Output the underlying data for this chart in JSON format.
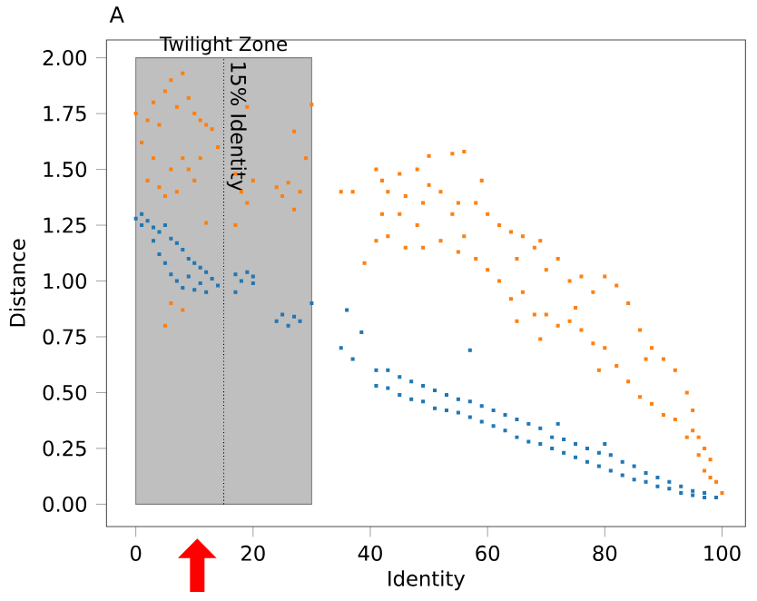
{
  "chart_data": {
    "type": "scatter",
    "title": "A",
    "xlabel": "Identity",
    "ylabel": "Distance",
    "xlim": [
      -5,
      104
    ],
    "ylim": [
      -0.1,
      2.08
    ],
    "xticks": [
      0,
      20,
      40,
      60,
      80,
      100
    ],
    "yticks": [
      {
        "value": 0,
        "label": "0.00"
      },
      {
        "value": 0.25,
        "label": "0.25"
      },
      {
        "value": 0.5,
        "label": "0.50"
      },
      {
        "value": 0.75,
        "label": "0.75"
      },
      {
        "value": 1.0,
        "label": "1.00"
      },
      {
        "value": 1.25,
        "label": "1.25"
      },
      {
        "value": 1.5,
        "label": "1.50"
      },
      {
        "value": 1.75,
        "label": "1.75"
      },
      {
        "value": 2.0,
        "label": "2.00"
      }
    ],
    "marker": "square",
    "bands": [
      {
        "axis": "x",
        "from": 0,
        "to": 30,
        "label": "Twilight Zone",
        "color": "#bfbfbf"
      }
    ],
    "ref_lines": [
      {
        "axis": "x",
        "value": 15,
        "label": "15% Identity",
        "color": "#000000",
        "line_style": "dotted"
      }
    ],
    "series": [
      {
        "color": "#1f77b4",
        "x": [
          0,
          1,
          1,
          2,
          3,
          3,
          4,
          4,
          5,
          5,
          6,
          6,
          7,
          7,
          8,
          8,
          9,
          9,
          10,
          10,
          11,
          11,
          12,
          12,
          13,
          14,
          17,
          17,
          18,
          19,
          20,
          20,
          24,
          25,
          26,
          27,
          28,
          30,
          35,
          36,
          37,
          38.5,
          41,
          41,
          43,
          43,
          45,
          45,
          47,
          47,
          49,
          49,
          51,
          51,
          53,
          53,
          55,
          55,
          57,
          57,
          57,
          59,
          59,
          61,
          61,
          63,
          63,
          65,
          65,
          67,
          67,
          69,
          69,
          71,
          71,
          72,
          73,
          73,
          75,
          75,
          77,
          77,
          79,
          79,
          80,
          81,
          81,
          83,
          83,
          85,
          85,
          87,
          87,
          89,
          89,
          91,
          91,
          93,
          93,
          95,
          95,
          97,
          97,
          99
        ],
        "values": [
          1.28,
          1.3,
          1.25,
          1.27,
          1.24,
          1.18,
          1.22,
          1.12,
          1.25,
          1.08,
          1.19,
          1.03,
          1.17,
          1.0,
          1.14,
          0.97,
          1.1,
          1.02,
          1.08,
          0.96,
          1.06,
          0.99,
          1.04,
          0.95,
          1.01,
          0.98,
          1.03,
          0.95,
          1.0,
          1.04,
          0.99,
          1.02,
          0.82,
          0.85,
          0.8,
          0.84,
          0.82,
          0.9,
          0.7,
          0.87,
          0.65,
          0.77,
          0.6,
          0.53,
          0.6,
          0.52,
          0.57,
          0.49,
          0.55,
          0.47,
          0.53,
          0.46,
          0.51,
          0.43,
          0.49,
          0.42,
          0.47,
          0.41,
          0.46,
          0.39,
          0.69,
          0.44,
          0.37,
          0.42,
          0.35,
          0.4,
          0.33,
          0.38,
          0.3,
          0.36,
          0.28,
          0.34,
          0.27,
          0.3,
          0.25,
          0.36,
          0.29,
          0.23,
          0.27,
          0.21,
          0.25,
          0.19,
          0.23,
          0.17,
          0.27,
          0.22,
          0.15,
          0.19,
          0.13,
          0.17,
          0.11,
          0.14,
          0.1,
          0.12,
          0.08,
          0.1,
          0.07,
          0.08,
          0.05,
          0.06,
          0.04,
          0.05,
          0.03,
          0.03
        ]
      },
      {
        "color": "#ff7f0e",
        "x": [
          0,
          1,
          2,
          2,
          3,
          3,
          4,
          4,
          5,
          5,
          5,
          6,
          6,
          6,
          7,
          7,
          8,
          8,
          8,
          9,
          9,
          10,
          10,
          11,
          11,
          12,
          12,
          13,
          14,
          17,
          17,
          18,
          19,
          19,
          20,
          24,
          25,
          26,
          27,
          27,
          28,
          29,
          30,
          35,
          37,
          39,
          41,
          41,
          42,
          42,
          43,
          43,
          45,
          45,
          46,
          46,
          48,
          48,
          49,
          49,
          50,
          50,
          52,
          52,
          54,
          54,
          55,
          55,
          56,
          56,
          58,
          58,
          59,
          60,
          60,
          62,
          62,
          64,
          64,
          65,
          65,
          66,
          66,
          68,
          68,
          69,
          69,
          70,
          70,
          72,
          72,
          74,
          74,
          75,
          76,
          76,
          78,
          78,
          79,
          80,
          80,
          82,
          82,
          84,
          84,
          86,
          86,
          87,
          88,
          88,
          90,
          90,
          92,
          92,
          94,
          94,
          95,
          95,
          96,
          96,
          97,
          97,
          98,
          98,
          99,
          100
        ],
        "values": [
          1.75,
          1.62,
          1.72,
          1.45,
          1.8,
          1.55,
          1.7,
          1.42,
          1.85,
          1.38,
          0.8,
          1.9,
          1.5,
          0.9,
          1.78,
          1.4,
          1.93,
          1.55,
          0.87,
          1.82,
          1.5,
          1.75,
          1.45,
          1.72,
          1.55,
          1.7,
          1.26,
          1.68,
          1.6,
          1.48,
          1.25,
          1.4,
          1.35,
          1.78,
          1.45,
          1.42,
          1.38,
          1.44,
          1.32,
          1.67,
          1.4,
          1.55,
          1.79,
          1.4,
          1.4,
          1.08,
          1.5,
          1.18,
          1.45,
          1.3,
          1.4,
          1.2,
          1.48,
          1.3,
          1.38,
          1.15,
          1.5,
          1.25,
          1.35,
          1.15,
          1.56,
          1.43,
          1.4,
          1.18,
          1.57,
          1.3,
          1.35,
          1.13,
          1.58,
          1.2,
          1.35,
          1.1,
          1.45,
          1.3,
          1.05,
          1.25,
          1.0,
          1.22,
          0.92,
          1.1,
          0.82,
          1.2,
          0.95,
          1.15,
          0.85,
          1.18,
          0.74,
          1.05,
          0.85,
          1.1,
          0.8,
          1.0,
          0.82,
          0.88,
          1.02,
          0.78,
          0.95,
          0.72,
          0.6,
          1.02,
          0.7,
          0.98,
          0.62,
          0.9,
          0.55,
          0.78,
          0.48,
          0.65,
          0.7,
          0.45,
          0.65,
          0.4,
          0.6,
          0.38,
          0.5,
          0.3,
          0.42,
          0.33,
          0.3,
          0.22,
          0.25,
          0.15,
          0.2,
          0.12,
          0.1,
          0.05
        ]
      }
    ]
  }
}
